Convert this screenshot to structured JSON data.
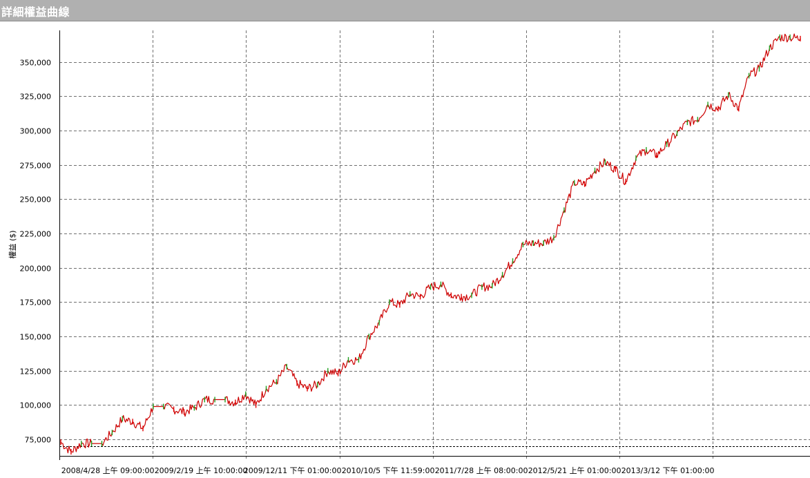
{
  "window": {
    "title": "詳細權益曲線"
  },
  "colors": {
    "up": "#20a020",
    "down": "#e00000",
    "line": "#cc0000",
    "grid": "#6e6e6e"
  },
  "chart_data": {
    "type": "line",
    "title": "",
    "ylabel": "權益 ($)",
    "ylim": [
      63000,
      373000
    ],
    "grid": true,
    "yticks": [
      {
        "value": 75000,
        "label": "75,000"
      },
      {
        "value": 100000,
        "label": "100,000"
      },
      {
        "value": 125000,
        "label": "125,000"
      },
      {
        "value": 150000,
        "label": "150,000"
      },
      {
        "value": 175000,
        "label": "175,000"
      },
      {
        "value": 200000,
        "label": "200,000"
      },
      {
        "value": 225000,
        "label": "225,000"
      },
      {
        "value": 250000,
        "label": "250,000"
      },
      {
        "value": 275000,
        "label": "275,000"
      },
      {
        "value": 300000,
        "label": "300,000"
      },
      {
        "value": 325000,
        "label": "325,000"
      },
      {
        "value": 350000,
        "label": "350,000"
      }
    ],
    "xticks": [
      {
        "label": "2008/4/28 上午 09:00:00"
      },
      {
        "label": "2009/2/19 上午 10:00:00"
      },
      {
        "label": "2009/12/11 下午 01:00:00"
      },
      {
        "label": "2010/10/5 下午 11:59:00"
      },
      {
        "label": "2011/7/28 上午 08:00:00"
      },
      {
        "label": "2012/5/21 上午 01:00:00"
      },
      {
        "label": "2013/3/12 下午 01:00:00"
      }
    ],
    "series": [
      {
        "values": [
          73000,
          66000,
          72000,
          72000,
          72000,
          80000,
          90000,
          88000,
          83000,
          99000,
          99000,
          97000,
          95000,
          98000,
          104000,
          104000,
          104000,
          102000,
          108000,
          100000,
          112000,
          117000,
          128000,
          116000,
          112000,
          115000,
          125000,
          123000,
          133000,
          133000,
          150000,
          160000,
          175000,
          173000,
          181000,
          179000,
          186000,
          188000,
          180000,
          179000,
          180000,
          186000,
          187000,
          195000,
          205000,
          217000,
          218000,
          218000,
          222000,
          242000,
          262000,
          261000,
          271000,
          277000,
          272000,
          263000,
          280000,
          286000,
          282000,
          290000,
          298000,
          306000,
          308000,
          319000,
          316000,
          326000,
          316000,
          340000,
          345000,
          360000,
          368000,
          368000,
          367000
        ]
      }
    ]
  }
}
